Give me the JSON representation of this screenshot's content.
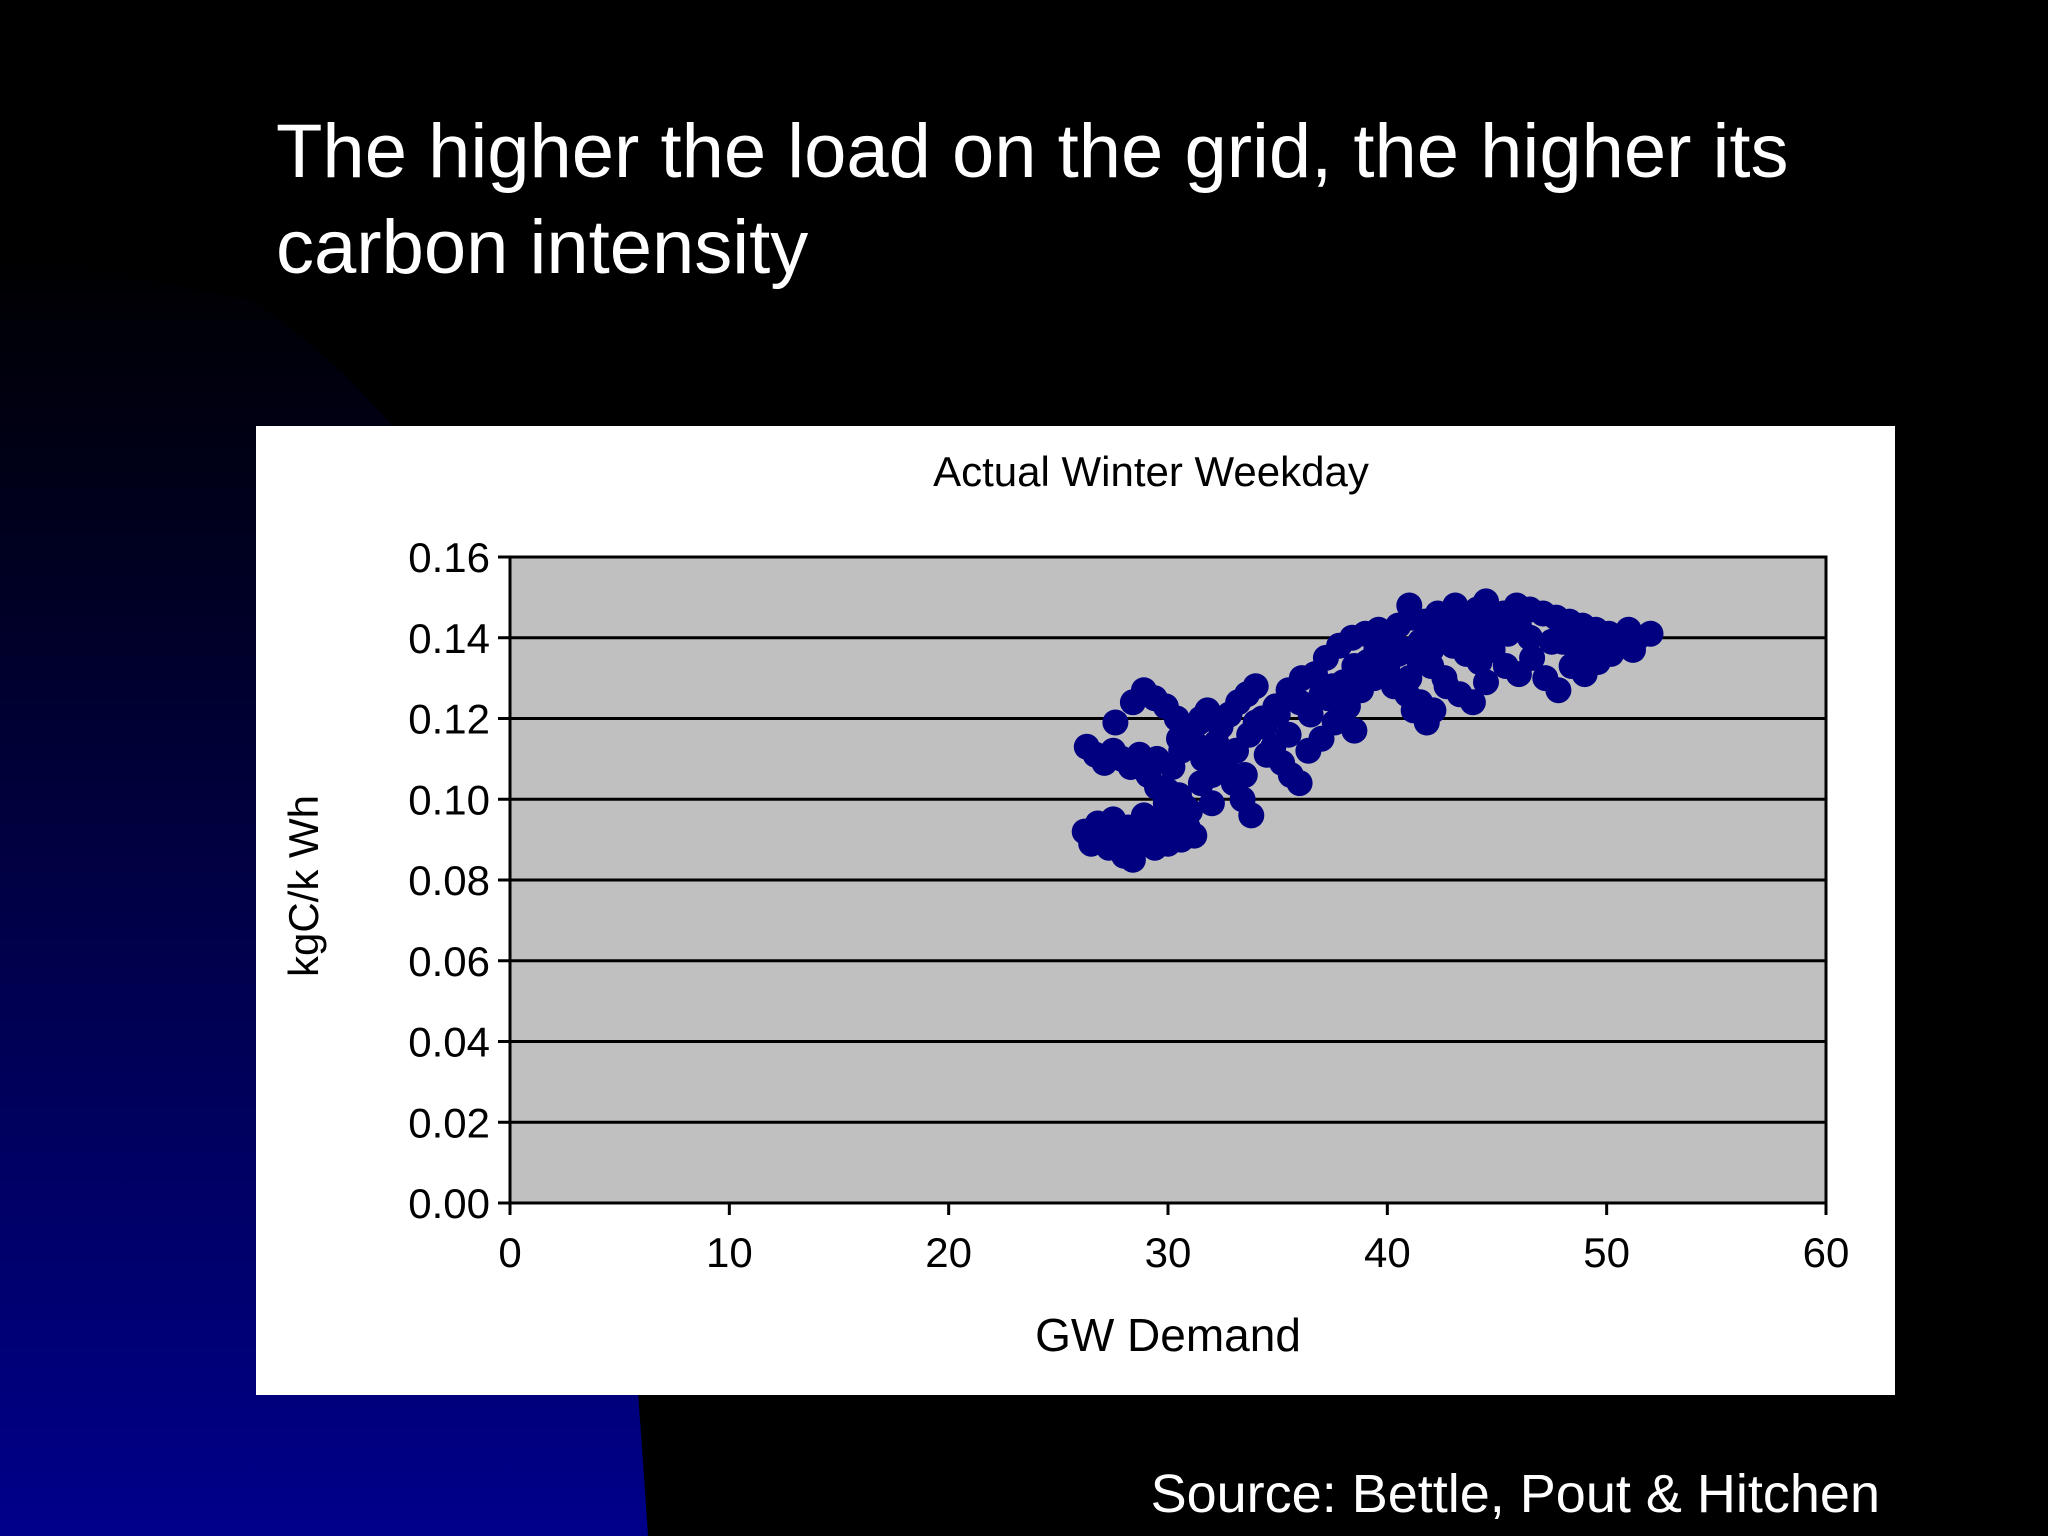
{
  "slide": {
    "title_line1": "The higher the load on the grid, the higher its",
    "title_line2": "carbon intensity",
    "source": "Source: Bettle, Pout & Hitchen",
    "colors": {
      "background": "#000000",
      "gradient_accent": "#00008b",
      "text": "#ffffff"
    }
  },
  "chart_data": {
    "type": "scatter",
    "title": "Actual Winter Weekday",
    "xlabel": "GW Demand",
    "ylabel": "kgC/k Wh",
    "xlim": [
      0,
      60
    ],
    "ylim": [
      0,
      0.16
    ],
    "x_ticks": [
      "0",
      "10",
      "20",
      "30",
      "40",
      "50",
      "60"
    ],
    "y_ticks": [
      "0.00",
      "0.02",
      "0.04",
      "0.06",
      "0.08",
      "0.10",
      "0.12",
      "0.14",
      "0.16"
    ],
    "grid": "horizontal",
    "legend": "none",
    "plot_background": "#c0c0c0",
    "point_color": "#000080",
    "series": [
      {
        "points": [
          [
            26.2,
            0.092
          ],
          [
            26.5,
            0.089
          ],
          [
            26.8,
            0.094
          ],
          [
            27.0,
            0.091
          ],
          [
            27.3,
            0.088
          ],
          [
            27.5,
            0.095
          ],
          [
            27.8,
            0.09
          ],
          [
            28.0,
            0.086
          ],
          [
            28.2,
            0.093
          ],
          [
            28.4,
            0.085
          ],
          [
            28.6,
            0.089
          ],
          [
            28.9,
            0.096
          ],
          [
            29.1,
            0.091
          ],
          [
            29.4,
            0.088
          ],
          [
            29.7,
            0.094
          ],
          [
            30.0,
            0.089
          ],
          [
            30.3,
            0.092
          ],
          [
            30.6,
            0.09
          ],
          [
            30.9,
            0.093
          ],
          [
            31.2,
            0.091
          ],
          [
            26.3,
            0.113
          ],
          [
            26.7,
            0.111
          ],
          [
            27.1,
            0.109
          ],
          [
            27.5,
            0.112
          ],
          [
            27.9,
            0.11
          ],
          [
            28.3,
            0.108
          ],
          [
            28.7,
            0.111
          ],
          [
            29.1,
            0.106
          ],
          [
            29.5,
            0.103
          ],
          [
            29.9,
            0.099
          ],
          [
            30.2,
            0.096
          ],
          [
            30.5,
            0.101
          ],
          [
            30.8,
            0.098
          ],
          [
            27.6,
            0.119
          ],
          [
            28.4,
            0.124
          ],
          [
            28.9,
            0.127
          ],
          [
            29.4,
            0.125
          ],
          [
            29.9,
            0.123
          ],
          [
            30.4,
            0.12
          ],
          [
            30.8,
            0.117
          ],
          [
            31.2,
            0.114
          ],
          [
            31.6,
            0.11
          ],
          [
            32.0,
            0.106
          ],
          [
            30.2,
            0.108
          ],
          [
            30.6,
            0.112
          ],
          [
            31.0,
            0.116
          ],
          [
            31.4,
            0.119
          ],
          [
            31.8,
            0.122
          ],
          [
            32.2,
            0.114
          ],
          [
            32.6,
            0.109
          ],
          [
            33.0,
            0.104
          ],
          [
            33.4,
            0.1
          ],
          [
            33.8,
            0.096
          ],
          [
            32.4,
            0.118
          ],
          [
            32.8,
            0.121
          ],
          [
            33.2,
            0.124
          ],
          [
            33.6,
            0.126
          ],
          [
            34.0,
            0.128
          ],
          [
            34.4,
            0.118
          ],
          [
            34.8,
            0.113
          ],
          [
            35.2,
            0.109
          ],
          [
            35.6,
            0.106
          ],
          [
            36.0,
            0.104
          ],
          [
            33.1,
            0.112
          ],
          [
            33.7,
            0.116
          ],
          [
            34.3,
            0.12
          ],
          [
            34.9,
            0.123
          ],
          [
            35.5,
            0.127
          ],
          [
            36.1,
            0.13
          ],
          [
            36.7,
            0.131
          ],
          [
            37.3,
            0.125
          ],
          [
            37.9,
            0.121
          ],
          [
            38.5,
            0.117
          ],
          [
            36.4,
            0.112
          ],
          [
            37.0,
            0.115
          ],
          [
            37.6,
            0.119
          ],
          [
            38.2,
            0.123
          ],
          [
            38.8,
            0.127
          ],
          [
            39.4,
            0.13
          ],
          [
            40.0,
            0.133
          ],
          [
            40.6,
            0.128
          ],
          [
            41.2,
            0.122
          ],
          [
            41.8,
            0.119
          ],
          [
            37.2,
            0.135
          ],
          [
            37.8,
            0.138
          ],
          [
            38.4,
            0.14
          ],
          [
            39.0,
            0.141
          ],
          [
            39.6,
            0.142
          ],
          [
            40.2,
            0.139
          ],
          [
            40.8,
            0.137
          ],
          [
            41.4,
            0.135
          ],
          [
            42.0,
            0.133
          ],
          [
            42.6,
            0.13
          ],
          [
            39.1,
            0.134
          ],
          [
            39.7,
            0.131
          ],
          [
            40.3,
            0.128
          ],
          [
            40.9,
            0.126
          ],
          [
            41.5,
            0.124
          ],
          [
            42.1,
            0.122
          ],
          [
            42.7,
            0.128
          ],
          [
            43.3,
            0.126
          ],
          [
            43.9,
            0.124
          ],
          [
            44.5,
            0.129
          ],
          [
            40.5,
            0.143
          ],
          [
            41.1,
            0.145
          ],
          [
            41.0,
            0.148
          ],
          [
            41.7,
            0.144
          ],
          [
            42.3,
            0.146
          ],
          [
            42.9,
            0.143
          ],
          [
            43.1,
            0.148
          ],
          [
            43.5,
            0.145
          ],
          [
            44.1,
            0.147
          ],
          [
            44.5,
            0.149
          ],
          [
            44.7,
            0.142
          ],
          [
            45.3,
            0.146
          ],
          [
            45.9,
            0.148
          ],
          [
            46.5,
            0.147
          ],
          [
            47.1,
            0.146
          ],
          [
            47.7,
            0.145
          ],
          [
            48.3,
            0.144
          ],
          [
            48.9,
            0.143
          ],
          [
            49.5,
            0.142
          ],
          [
            50.1,
            0.141
          ],
          [
            43.0,
            0.138
          ],
          [
            43.6,
            0.136
          ],
          [
            44.2,
            0.134
          ],
          [
            44.8,
            0.137
          ],
          [
            45.4,
            0.133
          ],
          [
            46.0,
            0.131
          ],
          [
            46.6,
            0.135
          ],
          [
            47.2,
            0.13
          ],
          [
            47.8,
            0.127
          ],
          [
            48.4,
            0.133
          ],
          [
            49.0,
            0.131
          ],
          [
            49.6,
            0.134
          ],
          [
            50.2,
            0.136
          ],
          [
            50.8,
            0.138
          ],
          [
            51.4,
            0.14
          ],
          [
            52.0,
            0.141
          ],
          [
            51.2,
            0.137
          ],
          [
            50.6,
            0.139
          ],
          [
            49.2,
            0.137
          ],
          [
            48.0,
            0.139
          ],
          [
            32.5,
            0.108
          ],
          [
            33.5,
            0.106
          ],
          [
            34.5,
            0.111
          ],
          [
            35.5,
            0.116
          ],
          [
            36.5,
            0.121
          ],
          [
            37.5,
            0.128
          ],
          [
            38.5,
            0.133
          ],
          [
            39.5,
            0.137
          ],
          [
            40.5,
            0.136
          ],
          [
            41.5,
            0.139
          ],
          [
            42.5,
            0.14
          ],
          [
            43.5,
            0.14
          ],
          [
            44.5,
            0.139
          ],
          [
            45.5,
            0.141
          ],
          [
            46.5,
            0.14
          ],
          [
            47.5,
            0.139
          ],
          [
            48.5,
            0.138
          ],
          [
            49.5,
            0.139
          ],
          [
            50.5,
            0.14
          ],
          [
            51.0,
            0.142
          ],
          [
            31.5,
            0.104
          ],
          [
            32.0,
            0.099
          ],
          [
            31.0,
            0.097
          ],
          [
            30.0,
            0.102
          ],
          [
            29.5,
            0.11
          ],
          [
            30.5,
            0.115
          ],
          [
            31.5,
            0.12
          ],
          [
            34.0,
            0.119
          ],
          [
            35.0,
            0.121
          ],
          [
            36.0,
            0.124
          ],
          [
            37.0,
            0.126
          ],
          [
            38.0,
            0.129
          ],
          [
            39.0,
            0.132
          ],
          [
            40.0,
            0.131
          ],
          [
            41.0,
            0.13
          ],
          [
            42.0,
            0.137
          ],
          [
            43.0,
            0.142
          ],
          [
            44.0,
            0.143
          ],
          [
            45.0,
            0.144
          ],
          [
            46.0,
            0.143
          ]
        ]
      }
    ]
  }
}
